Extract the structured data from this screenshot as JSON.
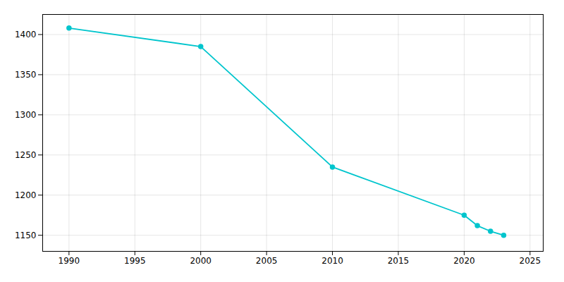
{
  "chart_data": {
    "type": "line",
    "x": [
      1990,
      2000,
      2010,
      2020,
      2021,
      2022,
      2023
    ],
    "values": [
      1408,
      1385,
      1235,
      1175,
      1162,
      1155,
      1150
    ],
    "color": "#00C5CD",
    "marker": "circle",
    "xlim": [
      1988,
      2026
    ],
    "ylim": [
      1130,
      1425
    ],
    "xticks": [
      1990,
      1995,
      2000,
      2005,
      2010,
      2015,
      2020,
      2025
    ],
    "yticks": [
      1150,
      1200,
      1250,
      1300,
      1350,
      1400
    ],
    "grid": true
  }
}
